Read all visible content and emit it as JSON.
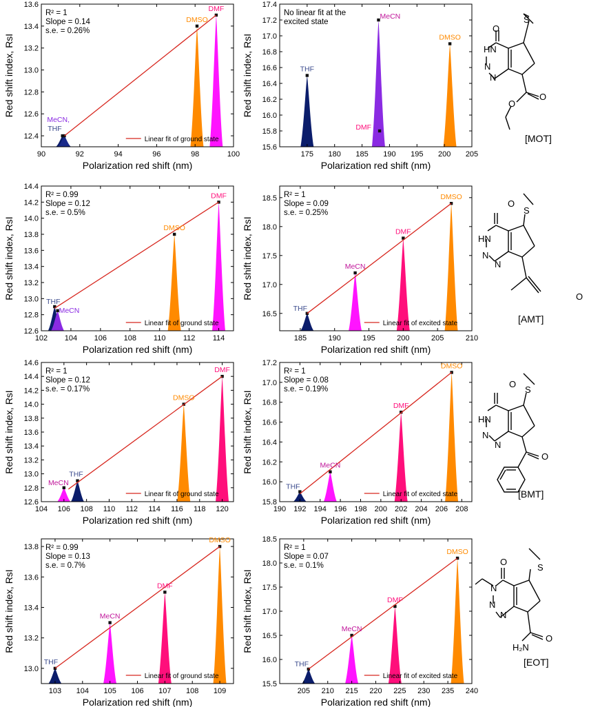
{
  "colors": {
    "THF": "#0b1d6b",
    "MeCN": "#ff14ff",
    "MeCN_label": "#c0159a",
    "DMF": "#ff0f7b",
    "DMSO": "#ff8a00",
    "MeCN_violet": "#8a2be2",
    "fit_line": "#d7261e",
    "THF_label": "#3a4a8c"
  },
  "ylabel": "Red shift index, RsI",
  "xlabel": "Polarization red shift (nm)",
  "chart_data": [
    {
      "id": "MOT-ground",
      "type": "area",
      "xlim": [
        90,
        100
      ],
      "ylim": [
        12.3,
        13.6
      ],
      "xticks": [
        "90",
        "92",
        "94",
        "96",
        "98",
        "100"
      ],
      "yticks": [
        "12.4",
        "12.6",
        "12.8",
        "13.0",
        "13.2",
        "13.4",
        "13.6"
      ],
      "points": [
        {
          "label": "MeCN,",
          "x": 91.1,
          "y": 12.4,
          "color": "#0b1d6b",
          "label_color": "#8a2be2"
        },
        {
          "label": "THF",
          "x": 91.2,
          "y": 12.4,
          "color": "#1a2a8a",
          "label_color": "#3a4a8c"
        },
        {
          "label": "DMSO",
          "x": 98.1,
          "y": 13.4,
          "color": "#ff8a00",
          "label_color": "#ff8a00"
        },
        {
          "label": "DMF",
          "x": 99.1,
          "y": 13.5,
          "color": "#ff14ff",
          "label_color": "#ff0f7b"
        }
      ],
      "fit": {
        "x1": 91.2,
        "y1": 12.4,
        "x2": 99.1,
        "y2": 13.5
      },
      "stats": [
        "R² = 1",
        "Slope = 0.14",
        "s.e. = 0.26%"
      ],
      "legend": "Linear fit of ground state"
    },
    {
      "id": "MOT-excited",
      "type": "area",
      "xlim": [
        170,
        205
      ],
      "ylim": [
        15.6,
        17.4
      ],
      "xticks": [
        "175",
        "180",
        "185",
        "190",
        "195",
        "200",
        "205"
      ],
      "yticks": [
        "15.6",
        "15.8",
        "16.0",
        "16.2",
        "16.4",
        "16.6",
        "16.8",
        "17.0",
        "17.2",
        "17.4"
      ],
      "points": [
        {
          "label": "THF",
          "x": 175,
          "y": 16.5,
          "color": "#0b1d6b",
          "label_color": "#3a4a8c"
        },
        {
          "label": "MeCN",
          "x": 188,
          "y": 17.2,
          "color": "#8a2be2",
          "label_color": "#c0159a"
        },
        {
          "label": "DMF",
          "x": 188.2,
          "y": 15.8,
          "color": "#000000",
          "label_color": "#ff0f7b",
          "marker_only": true
        },
        {
          "label": "DMSO",
          "x": 201,
          "y": 16.9,
          "color": "#ff8a00",
          "label_color": "#ff8a00"
        }
      ],
      "fit": null,
      "stats": [
        "No linear fit at the",
        "excited state"
      ],
      "legend": ""
    },
    {
      "id": "AMT-ground",
      "type": "area",
      "xlim": [
        102,
        115
      ],
      "ylim": [
        12.6,
        14.4
      ],
      "xticks": [
        "102",
        "104",
        "106",
        "108",
        "110",
        "112",
        "114"
      ],
      "yticks": [
        "12.6",
        "12.8",
        "13.0",
        "13.2",
        "13.4",
        "13.6",
        "13.8",
        "14.0",
        "14.2",
        "14.4"
      ],
      "points": [
        {
          "label": "THF",
          "x": 102.9,
          "y": 12.9,
          "color": "#0b1d6b",
          "label_color": "#3a4a8c"
        },
        {
          "label": "MeCN",
          "x": 103.1,
          "y": 12.85,
          "color": "#8a2be2",
          "label_color": "#8a2be2"
        },
        {
          "label": "DMSO",
          "x": 111,
          "y": 13.8,
          "color": "#ff8a00",
          "label_color": "#ff8a00"
        },
        {
          "label": "DMF",
          "x": 114,
          "y": 14.2,
          "color": "#ff14ff",
          "label_color": "#ff0f7b"
        }
      ],
      "fit": {
        "x1": 102.9,
        "y1": 12.88,
        "x2": 114,
        "y2": 14.2
      },
      "stats": [
        "R² = 0.99",
        "Slope = 0.12",
        "s.e. = 0.5%"
      ],
      "legend": "Linear fit of ground state"
    },
    {
      "id": "AMT-excited",
      "type": "area",
      "xlim": [
        182,
        210
      ],
      "ylim": [
        16.2,
        18.7
      ],
      "xticks": [
        "185",
        "190",
        "195",
        "200",
        "205",
        "210"
      ],
      "yticks": [
        "16.5",
        "17.0",
        "17.5",
        "18.0",
        "18.5"
      ],
      "points": [
        {
          "label": "THF",
          "x": 186,
          "y": 16.5,
          "color": "#0b1d6b",
          "label_color": "#3a4a8c"
        },
        {
          "label": "MeCN",
          "x": 193,
          "y": 17.2,
          "color": "#ff14ff",
          "label_color": "#c0159a"
        },
        {
          "label": "DMF",
          "x": 200,
          "y": 17.8,
          "color": "#ff0f7b",
          "label_color": "#ff0f7b"
        },
        {
          "label": "DMSO",
          "x": 207,
          "y": 18.4,
          "color": "#ff8a00",
          "label_color": "#ff8a00"
        }
      ],
      "fit": {
        "x1": 186,
        "y1": 16.5,
        "x2": 207,
        "y2": 18.4
      },
      "stats": [
        "R² = 1",
        "Slope = 0.09",
        "s.e. = 0.25%"
      ],
      "legend": "Linear fit of excited state"
    },
    {
      "id": "BMT-ground",
      "type": "area",
      "xlim": [
        104,
        121
      ],
      "ylim": [
        12.6,
        14.6
      ],
      "xticks": [
        "104",
        "106",
        "108",
        "110",
        "112",
        "114",
        "116",
        "118",
        "120"
      ],
      "yticks": [
        "12.6",
        "12.8",
        "13.0",
        "13.2",
        "13.4",
        "13.6",
        "13.8",
        "14.0",
        "14.2",
        "14.4",
        "14.6"
      ],
      "points": [
        {
          "label": "MeCN",
          "x": 106,
          "y": 12.8,
          "color": "#ff14ff",
          "label_color": "#c0159a"
        },
        {
          "label": "THF",
          "x": 107.2,
          "y": 12.9,
          "color": "#0b1d6b",
          "label_color": "#3a4a8c"
        },
        {
          "label": "DMSO",
          "x": 116.6,
          "y": 14.0,
          "color": "#ff8a00",
          "label_color": "#ff8a00"
        },
        {
          "label": "DMF",
          "x": 120,
          "y": 14.4,
          "color": "#ff0f7b",
          "label_color": "#ff0f7b"
        }
      ],
      "fit": {
        "x1": 106.4,
        "y1": 12.78,
        "x2": 120,
        "y2": 14.4
      },
      "stats": [
        "R² = 1",
        "Slope = 0.12",
        "s.e. = 0.17%"
      ],
      "legend": "Linear fit of ground state"
    },
    {
      "id": "BMT-excited",
      "type": "area",
      "xlim": [
        190,
        209
      ],
      "ylim": [
        15.8,
        17.2
      ],
      "xticks": [
        "190",
        "192",
        "194",
        "196",
        "198",
        "200",
        "202",
        "204",
        "206",
        "208"
      ],
      "yticks": [
        "15.8",
        "16.0",
        "16.2",
        "16.4",
        "16.6",
        "16.8",
        "17.0",
        "17.2"
      ],
      "points": [
        {
          "label": "THF",
          "x": 192,
          "y": 15.9,
          "color": "#0b1d6b",
          "label_color": "#3a4a8c"
        },
        {
          "label": "MeCN",
          "x": 195,
          "y": 16.1,
          "color": "#ff14ff",
          "label_color": "#c0159a"
        },
        {
          "label": "DMF",
          "x": 202,
          "y": 16.7,
          "color": "#ff0f7b",
          "label_color": "#ff0f7b"
        },
        {
          "label": "DMSO",
          "x": 207,
          "y": 17.1,
          "color": "#ff8a00",
          "label_color": "#ff8a00"
        }
      ],
      "fit": {
        "x1": 192,
        "y1": 15.88,
        "x2": 207,
        "y2": 17.1
      },
      "stats": [
        "R² = 1",
        "Slope = 0.08",
        "s.e. = 0.19%"
      ],
      "legend": "Linear fit of excited state"
    },
    {
      "id": "EOT-ground",
      "type": "area",
      "xlim": [
        102.5,
        109.5
      ],
      "ylim": [
        12.9,
        13.85
      ],
      "xticks": [
        "103",
        "104",
        "105",
        "106",
        "107",
        "108",
        "109"
      ],
      "yticks": [
        "13.0",
        "13.2",
        "13.4",
        "13.6",
        "13.8"
      ],
      "points": [
        {
          "label": "THF",
          "x": 103,
          "y": 13.0,
          "color": "#0b1d6b",
          "label_color": "#3a4a8c"
        },
        {
          "label": "MeCN",
          "x": 105,
          "y": 13.3,
          "color": "#ff14ff",
          "label_color": "#c0159a"
        },
        {
          "label": "DMF",
          "x": 107,
          "y": 13.5,
          "color": "#ff0f7b",
          "label_color": "#ff0f7b"
        },
        {
          "label": "DMSO",
          "x": 109,
          "y": 13.8,
          "color": "#ff8a00",
          "label_color": "#ff8a00"
        }
      ],
      "fit": {
        "x1": 103,
        "y1": 13.0,
        "x2": 109,
        "y2": 13.8
      },
      "stats": [
        "R² = 0.99",
        "Slope = 0.13",
        "s.e. = 0.7%"
      ],
      "legend": "Linear fit of ground state"
    },
    {
      "id": "EOT-excited",
      "type": "area",
      "xlim": [
        200,
        240
      ],
      "ylim": [
        15.5,
        18.5
      ],
      "xticks": [
        "205",
        "210",
        "215",
        "220",
        "225",
        "230",
        "235",
        "240"
      ],
      "yticks": [
        "15.5",
        "16.0",
        "16.5",
        "17.0",
        "17.5",
        "18.0",
        "18.5"
      ],
      "points": [
        {
          "label": "THF",
          "x": 206,
          "y": 15.8,
          "color": "#0b1d6b",
          "label_color": "#3a4a8c"
        },
        {
          "label": "MeCN",
          "x": 215,
          "y": 16.5,
          "color": "#ff14ff",
          "label_color": "#c0159a"
        },
        {
          "label": "DMF",
          "x": 224,
          "y": 17.1,
          "color": "#ff0f7b",
          "label_color": "#ff0f7b"
        },
        {
          "label": "DMSO",
          "x": 237,
          "y": 18.1,
          "color": "#ff8a00",
          "label_color": "#ff8a00"
        }
      ],
      "fit": {
        "x1": 206,
        "y1": 15.8,
        "x2": 237,
        "y2": 18.1
      },
      "stats": [
        "R² = 1",
        "Slope = 0.07",
        "s.e. = 0.1%"
      ],
      "legend": "Linear fit of excited state"
    }
  ],
  "molecules": [
    {
      "name": "[MOT]"
    },
    {
      "name": "[AMT]"
    },
    {
      "name": "[BMT]"
    },
    {
      "name": "[EOT]"
    }
  ]
}
